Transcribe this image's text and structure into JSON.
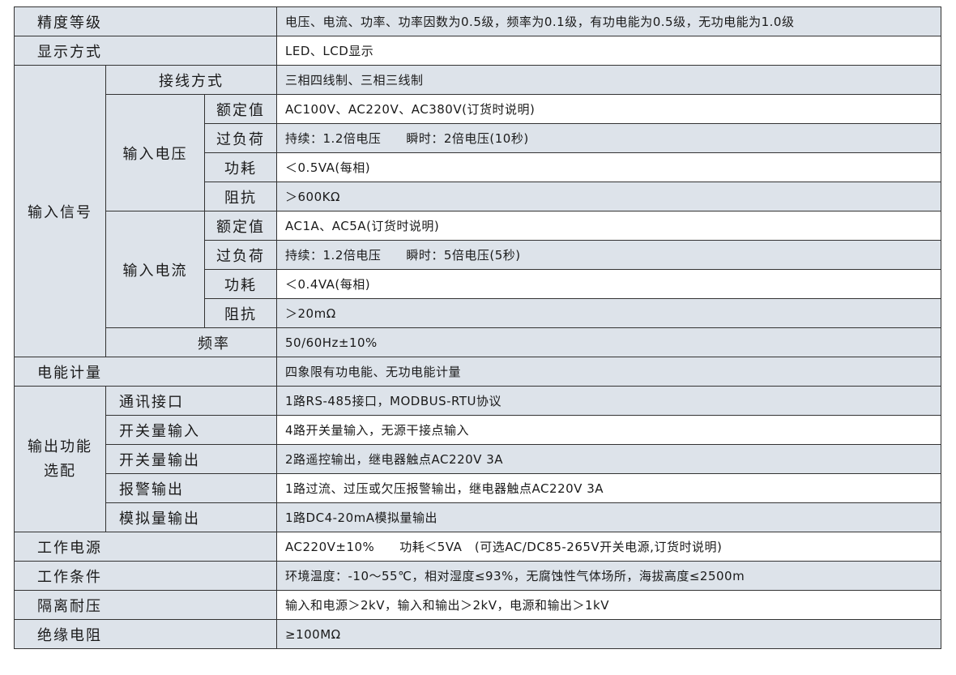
{
  "rows": {
    "accuracy": {
      "label": "精度等级",
      "value": "电压、电流、功率、功率因数为0.5级，频率为0.1级，有功电能为0.5级，无功电能为1.0级"
    },
    "display": {
      "label": "显示方式",
      "value": "LED、LCD显示"
    },
    "input_signal": {
      "label": "输入信号",
      "wiring": {
        "label": "接线方式",
        "value": "三相四线制、三相三线制"
      },
      "voltage": {
        "label": "输入电压",
        "rated": {
          "label": "额定值",
          "value": "AC100V、AC220V、AC380V(订货时说明)"
        },
        "overload": {
          "label": "过负荷",
          "value": "持续：1.2倍电压　　瞬时：2倍电压(10秒)"
        },
        "power": {
          "label": "功耗",
          "value": "＜0.5VA(每相)"
        },
        "impedance": {
          "label": "阻抗",
          "value": "＞600KΩ"
        }
      },
      "current": {
        "label": "输入电流",
        "rated": {
          "label": "额定值",
          "value": "AC1A、AC5A(订货时说明)"
        },
        "overload": {
          "label": "过负荷",
          "value": "持续：1.2倍电压　　瞬时：5倍电压(5秒)"
        },
        "power": {
          "label": "功耗",
          "value": "＜0.4VA(每相)"
        },
        "impedance": {
          "label": "阻抗",
          "value": "＞20mΩ"
        }
      },
      "frequency": {
        "label": "频率",
        "value": "50/60Hz±10%"
      }
    },
    "energy": {
      "label": "电能计量",
      "value": "四象限有功电能、无功电能计量"
    },
    "output": {
      "label": "输出功能选配",
      "label_line1": "输出功能",
      "label_line2": "选配",
      "comm": {
        "label": "通讯接口",
        "value": "1路RS-485接口，MODBUS-RTU协议"
      },
      "di": {
        "label": "开关量输入",
        "value": "4路开关量输入，无源干接点输入"
      },
      "do": {
        "label": "开关量输出",
        "value": "2路遥控输出，继电器触点AC220V 3A"
      },
      "alarm": {
        "label": "报警输出",
        "value": "1路过流、过压或欠压报警输出，继电器触点AC220V 3A"
      },
      "analog": {
        "label": "模拟量输出",
        "value": "1路DC4-20mA模拟量输出"
      }
    },
    "power_supply": {
      "label": "工作电源",
      "value": "AC220V±10%　　功耗＜5VA　(可选AC/DC85-265V开关电源,订货时说明)"
    },
    "conditions": {
      "label": "工作条件",
      "value": "环境温度：-10～55℃，相对湿度≤93%，无腐蚀性气体场所，海拔高度≤2500m"
    },
    "isolation": {
      "label": "隔离耐压",
      "value": "输入和电源＞2kV，输入和输出＞2kV，电源和输出＞1kV"
    },
    "insulation": {
      "label": "绝缘电阻",
      "value": "≥100MΩ"
    }
  },
  "colors": {
    "label_bg": "#dde3ea",
    "shaded_bg": "#dde3ea",
    "border": "#333333"
  }
}
